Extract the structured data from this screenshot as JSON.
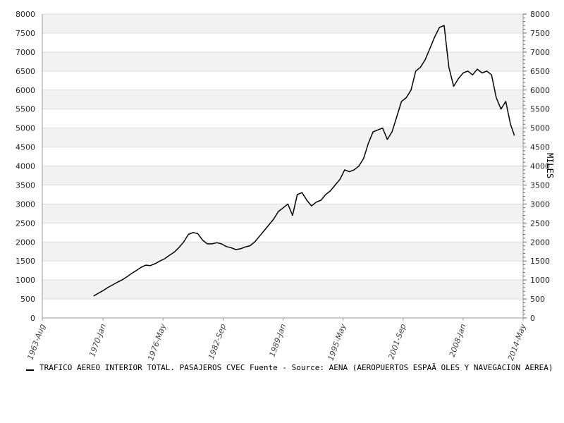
{
  "chart_data": {
    "type": "line",
    "ylabel_right": "MILES",
    "ylim": [
      0,
      8000
    ],
    "y_ticks": [
      0,
      500,
      1000,
      1500,
      2000,
      2500,
      3000,
      3500,
      4000,
      4500,
      5000,
      5500,
      6000,
      6500,
      7000,
      7500,
      8000
    ],
    "x_ticks": [
      "1963-Aug",
      "1970-Jan",
      "1976-May",
      "1982-Sep",
      "1989-Jan",
      "1995-May",
      "2001-Sep",
      "2008-Jan",
      "2014-May"
    ],
    "grid": "horizontal bands",
    "series": [
      {
        "name": "TRAFICO AEREO INTERIOR TOTAL. PASAJEROS CVEC  Fuente - Source: AENA (AEROPUERTOS ESPAÃ OLES Y NAVEGACION AEREA)",
        "x": [
          "1969-01",
          "1969-07",
          "1970-01",
          "1970-07",
          "1971-01",
          "1971-07",
          "1972-01",
          "1972-07",
          "1973-01",
          "1973-07",
          "1974-01",
          "1974-07",
          "1975-01",
          "1975-07",
          "1976-01",
          "1976-07",
          "1977-01",
          "1977-07",
          "1978-01",
          "1978-07",
          "1979-01",
          "1979-07",
          "1980-01",
          "1980-07",
          "1981-01",
          "1981-07",
          "1982-01",
          "1982-07",
          "1983-01",
          "1983-07",
          "1984-01",
          "1984-07",
          "1985-01",
          "1985-07",
          "1986-01",
          "1986-07",
          "1987-01",
          "1987-07",
          "1988-01",
          "1988-07",
          "1989-01",
          "1989-07",
          "1990-01",
          "1990-07",
          "1991-01",
          "1991-07",
          "1992-01",
          "1992-07",
          "1993-01",
          "1993-07",
          "1994-01",
          "1994-07",
          "1995-01",
          "1995-07",
          "1996-01",
          "1996-07",
          "1997-01",
          "1997-07",
          "1998-01",
          "1998-07",
          "1999-01",
          "1999-07",
          "2000-01",
          "2000-07",
          "2001-01",
          "2001-07",
          "2002-01",
          "2002-07",
          "2003-01",
          "2003-07",
          "2004-01",
          "2004-07",
          "2005-01",
          "2005-07",
          "2006-01",
          "2006-07",
          "2007-01",
          "2007-07",
          "2008-01",
          "2008-07",
          "2009-01",
          "2009-07",
          "2010-01",
          "2010-07",
          "2011-01",
          "2011-07",
          "2012-01",
          "2012-07",
          "2013-01",
          "2013-06"
        ],
        "values": [
          580,
          650,
          720,
          800,
          870,
          940,
          1000,
          1080,
          1170,
          1250,
          1330,
          1390,
          1380,
          1430,
          1500,
          1560,
          1650,
          1730,
          1850,
          2000,
          2200,
          2250,
          2220,
          2050,
          1950,
          1950,
          1980,
          1950,
          1880,
          1850,
          1800,
          1820,
          1870,
          1900,
          2000,
          2150,
          2300,
          2450,
          2600,
          2800,
          2900,
          3000,
          2700,
          3250,
          3300,
          3100,
          2950,
          3050,
          3100,
          3250,
          3350,
          3500,
          3650,
          3900,
          3850,
          3900,
          4000,
          4200,
          4600,
          4900,
          4950,
          5000,
          4700,
          4900,
          5300,
          5700,
          5800,
          6000,
          6500,
          6600,
          6800,
          7100,
          7400,
          7650,
          7700,
          6600,
          6100,
          6300,
          6450,
          6500,
          6400,
          6550,
          6450,
          6500,
          6400,
          5800,
          5500,
          5700,
          5100,
          4800
        ]
      }
    ]
  }
}
